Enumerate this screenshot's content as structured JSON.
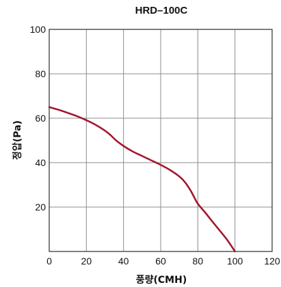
{
  "chart_data": {
    "type": "line",
    "title": "HRD–100C",
    "xlabel": "풍량(CMH)",
    "ylabel": "정압(Pa)",
    "xlim": [
      0,
      120
    ],
    "ylim": [
      0,
      100
    ],
    "xticks": [
      "0",
      "20",
      "40",
      "60",
      "80",
      "100",
      "120"
    ],
    "yticks": [
      "20",
      "40",
      "60",
      "80",
      "100"
    ],
    "grid": true,
    "series": [
      {
        "color": "#a3172f",
        "points": [
          [
            0,
            65
          ],
          [
            5,
            63.8
          ],
          [
            10,
            62.4
          ],
          [
            15,
            60.9
          ],
          [
            20,
            59.1
          ],
          [
            25,
            57
          ],
          [
            30,
            54.4
          ],
          [
            33,
            52.4
          ],
          [
            36,
            50
          ],
          [
            40,
            47.5
          ],
          [
            45,
            45
          ],
          [
            50,
            43
          ],
          [
            55,
            41
          ],
          [
            60,
            39
          ],
          [
            65,
            36.7
          ],
          [
            70,
            33.8
          ],
          [
            73,
            31.3
          ],
          [
            76,
            27.6
          ],
          [
            78,
            24.5
          ],
          [
            80,
            21.5
          ],
          [
            84,
            17.5
          ],
          [
            88,
            13.3
          ],
          [
            92,
            9.2
          ],
          [
            96,
            5
          ],
          [
            100,
            0
          ]
        ]
      }
    ]
  }
}
